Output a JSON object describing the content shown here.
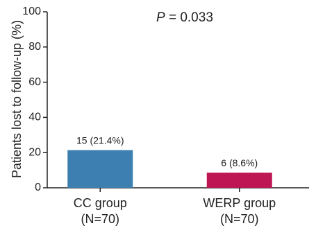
{
  "chart_data": {
    "type": "bar",
    "categories": [
      "CC group",
      "WERP group"
    ],
    "category_sublabels": [
      "(N=70)",
      "(N=70)"
    ],
    "values": [
      21.4,
      8.6
    ],
    "data_labels": [
      "15 (21.4%)",
      "6 (8.6%)"
    ],
    "colors": [
      "#3d7fb0",
      "#be1654"
    ],
    "ylabel": "Patients lost to follow-up (%)",
    "ylim": [
      0,
      100
    ],
    "yticks": [
      0,
      20,
      40,
      60,
      80,
      100
    ],
    "annotation": {
      "prefix": "P",
      "text": " = 0.033"
    },
    "grid": false
  }
}
